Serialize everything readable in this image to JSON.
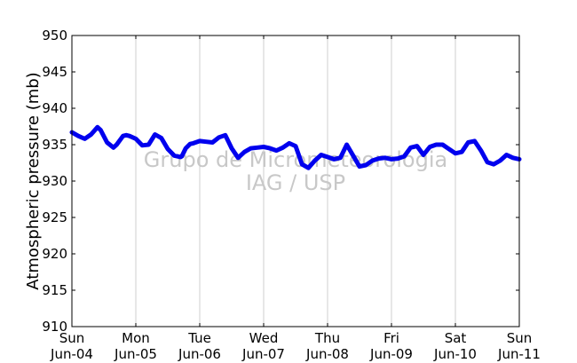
{
  "chart_data": {
    "type": "line",
    "title": "",
    "xlabel": "",
    "ylabel": "Atmospheric pressure (mb)",
    "ylim": [
      910,
      950
    ],
    "yticks": [
      910,
      915,
      920,
      925,
      930,
      935,
      940,
      945,
      950
    ],
    "xlim": [
      0,
      7
    ],
    "xticks": [
      {
        "day": "Sun",
        "date": "Jun-04"
      },
      {
        "day": "Mon",
        "date": "Jun-05"
      },
      {
        "day": "Tue",
        "date": "Jun-06"
      },
      {
        "day": "Wed",
        "date": "Jun-07"
      },
      {
        "day": "Thu",
        "date": "Jun-08"
      },
      {
        "day": "Fri",
        "date": "Jun-09"
      },
      {
        "day": "Sat",
        "date": "Jun-10"
      },
      {
        "day": "Sun",
        "date": "Jun-11"
      }
    ],
    "grid": "vertical",
    "watermark": [
      "Grupo de Micrometeorologia",
      "IAG / USP"
    ],
    "series": [
      {
        "color": "#0000ee",
        "x": [
          0,
          0.1,
          0.2,
          0.3,
          0.4,
          0.45,
          0.55,
          0.65,
          0.7,
          0.8,
          0.85,
          0.9,
          1.0,
          1.1,
          1.2,
          1.3,
          1.4,
          1.5,
          1.6,
          1.7,
          1.72,
          1.78,
          1.85,
          1.9,
          2.0,
          2.1,
          2.2,
          2.3,
          2.4,
          2.5,
          2.6,
          2.7,
          2.8,
          2.9,
          3.0,
          3.1,
          3.2,
          3.3,
          3.4,
          3.5,
          3.6,
          3.7,
          3.8,
          3.9,
          4.0,
          4.1,
          4.2,
          4.3,
          4.4,
          4.5,
          4.6,
          4.7,
          4.8,
          4.9,
          5.0,
          5.1,
          5.2,
          5.3,
          5.4,
          5.5,
          5.6,
          5.7,
          5.8,
          5.9,
          6.0,
          6.1,
          6.2,
          6.3,
          6.4,
          6.5,
          6.6,
          6.7,
          6.8,
          6.9,
          7.0
        ],
        "y": [
          936.7,
          936.2,
          935.8,
          936.4,
          937.4,
          937.0,
          935.3,
          934.6,
          935.0,
          936.2,
          936.3,
          936.2,
          935.8,
          934.9,
          935.0,
          936.4,
          935.9,
          934.4,
          933.5,
          933.3,
          933.4,
          934.5,
          935.1,
          935.2,
          935.5,
          935.4,
          935.3,
          936.0,
          936.3,
          934.5,
          933.2,
          934.0,
          934.5,
          934.6,
          934.7,
          934.5,
          934.2,
          934.6,
          935.2,
          934.8,
          932.3,
          931.8,
          932.8,
          933.6,
          933.3,
          933.0,
          933.2,
          935.0,
          933.5,
          932.0,
          932.2,
          932.8,
          933.1,
          933.2,
          933.0,
          933.1,
          933.4,
          934.6,
          934.8,
          933.6,
          934.7,
          935.0,
          935.0,
          934.4,
          933.8,
          934.0,
          935.3,
          935.5,
          934.2,
          932.6,
          932.3,
          932.8,
          933.6,
          933.2,
          933.0
        ]
      }
    ]
  }
}
